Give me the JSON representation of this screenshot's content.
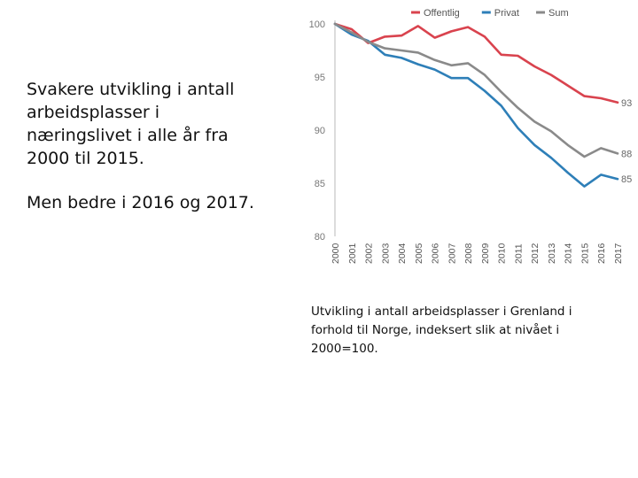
{
  "slide": {
    "paragraph_1": "Svakere utvikling i antall arbeidsplasser i næringslivet i alle år fra 2000 til 2015.",
    "paragraph_2": "Men bedre i 2016 og 2017.",
    "caption": "Utvikling i antall arbeidsplasser i Grenland i forhold til Norge, indeksert slik at nivået i 2000=100."
  },
  "chart_data": {
    "type": "line",
    "title": "",
    "xlabel": "",
    "ylabel": "",
    "x": [
      "2000",
      "2001",
      "2002",
      "2003",
      "2004",
      "2005",
      "2006",
      "2007",
      "2008",
      "2009",
      "2010",
      "2011",
      "2012",
      "2013",
      "2014",
      "2015",
      "2016",
      "2017"
    ],
    "ylim": [
      80,
      100
    ],
    "yticks": [
      80,
      85,
      90,
      95,
      100
    ],
    "legend_position": "top-right",
    "series": [
      {
        "name": "Offentlig",
        "color": "#d9434e",
        "end_label": "93",
        "values": [
          100,
          99.5,
          98.2,
          98.8,
          98.9,
          99.8,
          98.7,
          99.3,
          99.7,
          98.8,
          97.1,
          97.0,
          96.0,
          95.2,
          94.2,
          93.2,
          93.0,
          92.6
        ]
      },
      {
        "name": "Privat",
        "color": "#2e7fb8",
        "end_label": "85",
        "values": [
          100,
          99.0,
          98.4,
          97.1,
          96.8,
          96.2,
          95.7,
          94.9,
          94.9,
          93.7,
          92.3,
          90.2,
          88.6,
          87.4,
          86.0,
          84.7,
          85.8,
          85.4
        ]
      },
      {
        "name": "Sum",
        "color": "#8a8a8a",
        "end_label": "88",
        "values": [
          100,
          99.2,
          98.3,
          97.7,
          97.5,
          97.3,
          96.6,
          96.1,
          96.3,
          95.2,
          93.6,
          92.1,
          90.8,
          89.9,
          88.6,
          87.5,
          88.3,
          87.8
        ]
      }
    ]
  }
}
